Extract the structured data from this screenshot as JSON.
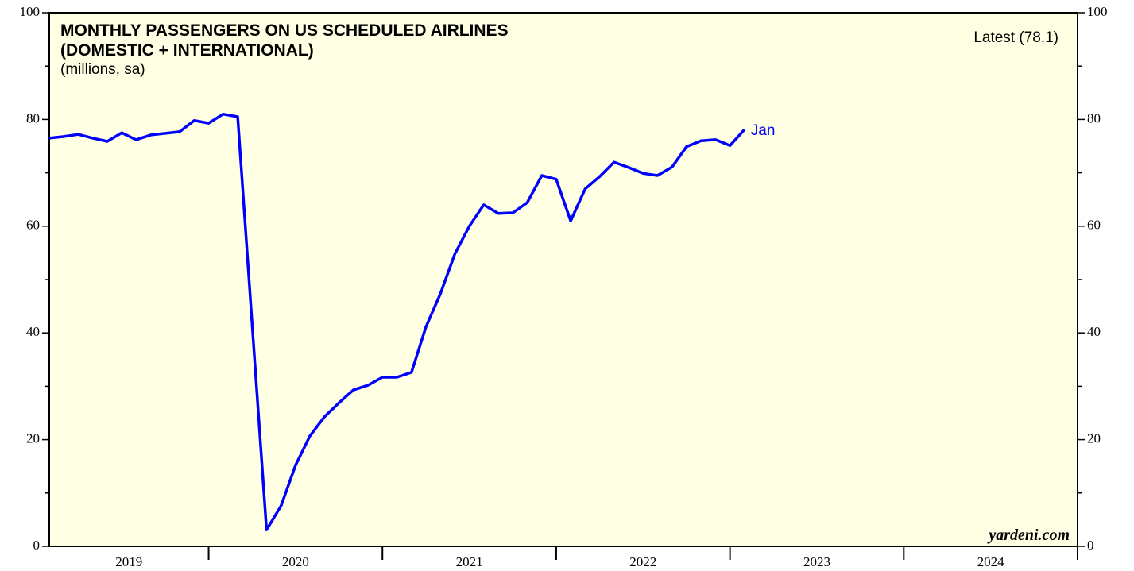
{
  "chart_data": {
    "type": "line",
    "title_lines": [
      "MONTHLY PASSENGERS ON US SCHEDULED AIRLINES",
      "(DOMESTIC + INTERNATIONAL)"
    ],
    "subtitle": "(millions, sa)",
    "annotations": {
      "latest": "Latest (78.1)",
      "end_label": "Jan",
      "source": "yardeni.com"
    },
    "x": [
      2019.083,
      2019.167,
      2019.25,
      2019.333,
      2019.417,
      2019.5,
      2019.583,
      2019.667,
      2019.75,
      2019.833,
      2019.917,
      2020.0,
      2020.083,
      2020.167,
      2020.25,
      2020.333,
      2020.417,
      2020.5,
      2020.583,
      2020.667,
      2020.75,
      2020.833,
      2020.917,
      2021.0,
      2021.083,
      2021.167,
      2021.25,
      2021.333,
      2021.417,
      2021.5,
      2021.583,
      2021.667,
      2021.75,
      2021.833,
      2021.917,
      2022.0,
      2022.083,
      2022.167,
      2022.25,
      2022.333,
      2022.417,
      2022.5,
      2022.583,
      2022.667,
      2022.75,
      2022.833,
      2022.917,
      2023.0,
      2023.083
    ],
    "series": [
      {
        "name": "Passengers",
        "color": "#0000ff",
        "values": [
          76.5,
          76.8,
          77.2,
          76.5,
          75.9,
          77.5,
          76.2,
          77.1,
          77.4,
          77.7,
          79.8,
          79.3,
          81.0,
          80.5,
          41.8,
          3.1,
          7.6,
          15.2,
          20.7,
          24.3,
          26.9,
          29.3,
          30.2,
          31.7,
          31.7,
          32.6,
          41.1,
          47.3,
          54.8,
          60.0,
          64.0,
          62.4,
          62.5,
          64.4,
          69.5,
          68.8,
          61.0,
          67.0,
          69.3,
          72.0,
          71.0,
          69.9,
          69.5,
          71.1,
          74.9,
          76.0,
          76.2,
          75.1,
          78.1
        ]
      }
    ],
    "xlim": [
      2019.083,
      2025
    ],
    "xticks": [
      2020,
      2021,
      2022,
      2023,
      2024,
      2025
    ],
    "year_labels": [
      2019,
      2020,
      2021,
      2022,
      2023,
      2024
    ],
    "ylim": [
      0,
      100
    ],
    "yticks": [
      0,
      20,
      40,
      60,
      80,
      100
    ],
    "yminor": [
      10,
      30,
      50,
      70,
      90
    ],
    "background": "#ffffe3"
  }
}
